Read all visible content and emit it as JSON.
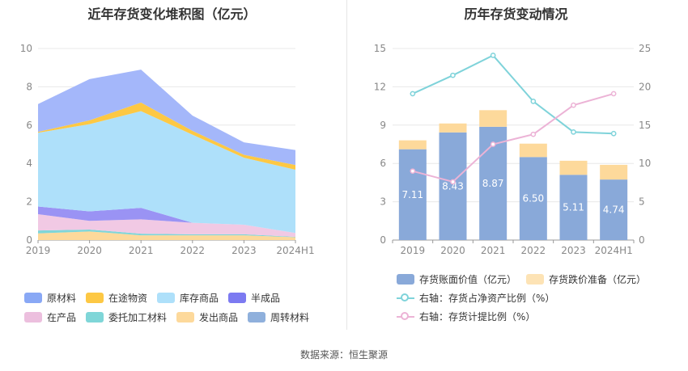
{
  "left": {
    "title": "近年存货变化堆积图（亿元）",
    "chart_data": {
      "type": "area",
      "stacked": true,
      "categories": [
        "2019",
        "2020",
        "2021",
        "2022",
        "2023",
        "2024H1"
      ],
      "ylim": [
        0,
        10
      ],
      "yticks": [
        0,
        2,
        4,
        6,
        8,
        10
      ],
      "grid": true,
      "legend_position": "bottom",
      "series": [
        {
          "name": "发出商品",
          "color": "#fdd99b",
          "values": [
            0.35,
            0.45,
            0.25,
            0.25,
            0.25,
            0.15
          ]
        },
        {
          "name": "委托加工材料",
          "color": "#7fd6d8",
          "values": [
            0.15,
            0.1,
            0.08,
            0.05,
            0.05,
            0.02
          ]
        },
        {
          "name": "在产品",
          "color": "#f1c9e4",
          "values": [
            0.85,
            0.45,
            0.75,
            0.6,
            0.5,
            0.2
          ]
        },
        {
          "name": "半成品",
          "color": "#9a93f4",
          "values": [
            0.4,
            0.5,
            0.6,
            0.0,
            0.0,
            0.0
          ]
        },
        {
          "name": "库存商品",
          "color": "#aee0fa",
          "values": [
            3.85,
            4.55,
            5.05,
            4.6,
            3.5,
            3.3
          ]
        },
        {
          "name": "在途物资",
          "color": "#fdc844",
          "values": [
            0.05,
            0.2,
            0.45,
            0.2,
            0.15,
            0.25
          ]
        },
        {
          "name": "原材料",
          "color": "#a4b7fa",
          "values": [
            1.45,
            2.15,
            1.72,
            0.8,
            0.65,
            0.78
          ]
        },
        {
          "name": "周转材料",
          "color": "#8fb0dc",
          "values": [
            0,
            0,
            0,
            0,
            0,
            0
          ]
        }
      ]
    },
    "legend": [
      {
        "label": "原材料",
        "color": "#89a8f5"
      },
      {
        "label": "在途物资",
        "color": "#fdc844"
      },
      {
        "label": "库存商品",
        "color": "#aee0fa"
      },
      {
        "label": "半成品",
        "color": "#7c7af1"
      },
      {
        "label": "在产品",
        "color": "#ecbfde"
      },
      {
        "label": "委托加工材料",
        "color": "#7fd6d8"
      },
      {
        "label": "发出商品",
        "color": "#fdd99b"
      },
      {
        "label": "周转材料",
        "color": "#8fb0dc"
      }
    ]
  },
  "right": {
    "title": "历年存货变动情况",
    "chart_data": {
      "type": "bar",
      "stacked": true,
      "categories": [
        "2019",
        "2020",
        "2021",
        "2022",
        "2023",
        "2024H1"
      ],
      "ylim_left": [
        0,
        15
      ],
      "yticks_left": [
        0,
        3,
        6,
        9,
        12,
        15
      ],
      "ylim_right": [
        0,
        25
      ],
      "yticks_right": [
        0,
        5,
        10,
        15,
        20,
        25
      ],
      "series": [
        {
          "name": "存货账面价值（亿元）",
          "color": "#89a9d9",
          "values": [
            7.11,
            8.43,
            8.87,
            6.5,
            5.11,
            4.74
          ],
          "labels": [
            "7.11",
            "8.43",
            "8.87",
            "6.50",
            "5.11",
            "4.74"
          ]
        },
        {
          "name": "存货跌价准备（亿元）",
          "color": "#fdd99b",
          "values": [
            0.7,
            0.7,
            1.3,
            1.05,
            1.1,
            1.15
          ]
        },
        {
          "name": "右轴：存货占净资产比例（%）",
          "color": "#7fd3da",
          "axis": "right",
          "type": "line",
          "values": [
            19.1,
            21.5,
            24.1,
            18.1,
            14.1,
            13.9
          ]
        },
        {
          "name": "右轴：存货计提比例（%）",
          "color": "#ecb3d6",
          "axis": "right",
          "type": "line",
          "values": [
            9.0,
            7.6,
            12.5,
            13.8,
            17.6,
            19.1
          ]
        }
      ]
    },
    "legend": [
      {
        "label": "存货账面价值（亿元）",
        "color": "#89a9d9",
        "kind": "box"
      },
      {
        "label": "存货跌价准备（亿元）",
        "color": "#fde3b5",
        "kind": "box"
      },
      {
        "label": "右轴：存货占净资产比例（%）",
        "color": "#7fd3da",
        "kind": "line"
      },
      {
        "label": "右轴：存货计提比例（%）",
        "color": "#ecb3d6",
        "kind": "line"
      }
    ]
  },
  "source": "数据来源：恒生聚源"
}
